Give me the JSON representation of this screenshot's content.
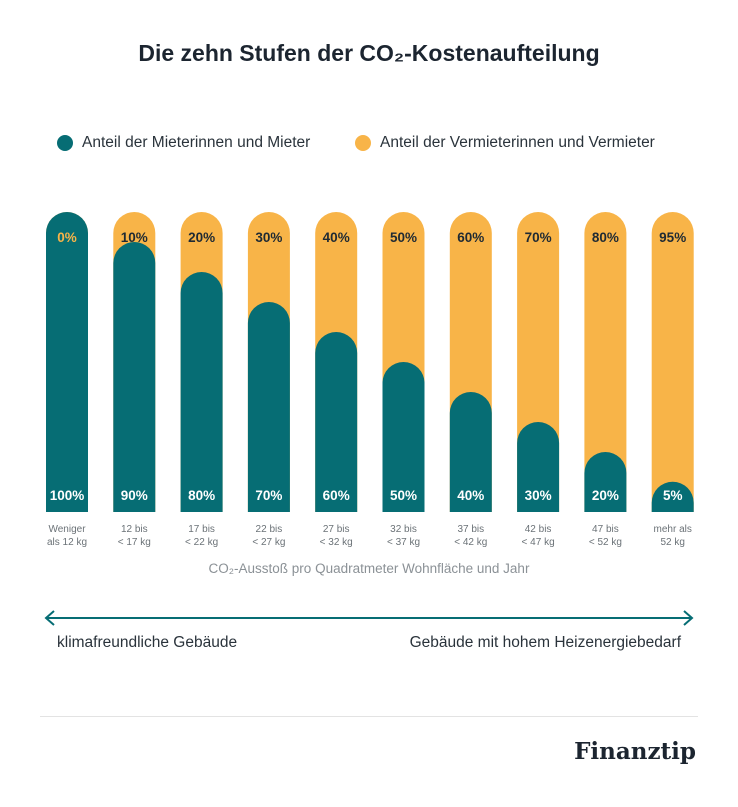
{
  "title": "Die zehn Stufen der CO₂-Kostenaufteilung",
  "colors": {
    "tenant": "#066d74",
    "landlord": "#f8b448"
  },
  "legend": {
    "tenant": "Anteil der Mieterinnen und Mieter",
    "landlord": "Anteil der Vermieterinnen und Vermieter"
  },
  "chart_data": {
    "type": "bar",
    "stacked": true,
    "title": "Die zehn Stufen der CO₂-Kostenaufteilung",
    "xlabel": "CO₂-Ausstoß pro Quadratmeter Wohnfläche und Jahr",
    "ylabel": "",
    "ylim": [
      0,
      100
    ],
    "categories": [
      [
        "Weniger",
        "als 12 kg"
      ],
      [
        "12 bis",
        "< 17 kg"
      ],
      [
        "17 bis",
        "< 22 kg"
      ],
      [
        "22 bis",
        "< 27 kg"
      ],
      [
        "27 bis",
        "< 32 kg"
      ],
      [
        "32 bis",
        "< 37 kg"
      ],
      [
        "37 bis",
        "< 42 kg"
      ],
      [
        "42 bis",
        "< 47 kg"
      ],
      [
        "47 bis",
        "< 52 kg"
      ],
      [
        "mehr als",
        "52 kg"
      ]
    ],
    "series": [
      {
        "name": "Anteil der Mieterinnen und Mieter",
        "values": [
          100,
          90,
          80,
          70,
          60,
          50,
          40,
          30,
          20,
          5
        ],
        "labels": [
          "100%",
          "90%",
          "80%",
          "70%",
          "60%",
          "50%",
          "40%",
          "30%",
          "20%",
          "5%"
        ]
      },
      {
        "name": "Anteil der Vermieterinnen und Vermieter",
        "values": [
          0,
          10,
          20,
          30,
          40,
          50,
          60,
          70,
          80,
          95
        ],
        "labels": [
          "0%",
          "10%",
          "20%",
          "30%",
          "40%",
          "50%",
          "60%",
          "70%",
          "80%",
          "95%"
        ]
      }
    ]
  },
  "scale": {
    "left": "klimafreundliche Gebäude",
    "right": "Gebäude mit hohem Heizenergiebedarf"
  },
  "brand": "Finanztip"
}
